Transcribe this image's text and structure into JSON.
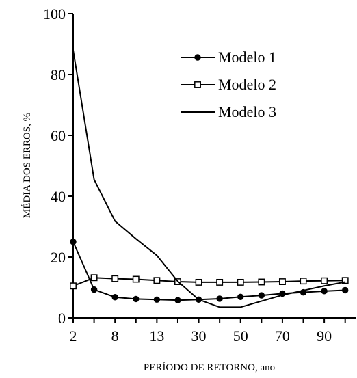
{
  "chart_data": {
    "type": "line",
    "xlabel": "PERÍODO DE RETORNO, ano",
    "ylabel": "MÉDIA DOS ERROS, %",
    "ylim": [
      0,
      100
    ],
    "y_ticks": [
      "0",
      "20",
      "40",
      "60",
      "80",
      "100"
    ],
    "x_tick_labels": [
      "2",
      "8",
      "13",
      "30",
      "50",
      "70",
      "90"
    ],
    "x": [
      "2",
      "5",
      "8",
      "10",
      "13",
      "20",
      "30",
      "40",
      "50",
      "60",
      "70",
      "80",
      "90",
      "100"
    ],
    "grid": false,
    "legend_position": "top-right",
    "series": [
      {
        "name": "Modelo 1",
        "marker": "filled-circle",
        "color": "#000000",
        "values": [
          25.0,
          9.3,
          6.8,
          6.2,
          6.0,
          5.8,
          6.0,
          6.3,
          6.9,
          7.4,
          8.0,
          8.4,
          8.8,
          9.1
        ]
      },
      {
        "name": "Modelo 2",
        "marker": "open-square",
        "color": "#000000",
        "values": [
          10.5,
          13.2,
          12.9,
          12.7,
          12.3,
          11.9,
          11.7,
          11.7,
          11.7,
          11.8,
          11.9,
          12.1,
          12.2,
          12.3
        ]
      },
      {
        "name": "Modelo 3",
        "marker": "none",
        "color": "#000000",
        "values": [
          88.0,
          45.5,
          31.8,
          26.0,
          20.5,
          12.0,
          6.0,
          3.5,
          3.5,
          5.5,
          7.5,
          9.0,
          10.5,
          11.8
        ]
      }
    ]
  }
}
